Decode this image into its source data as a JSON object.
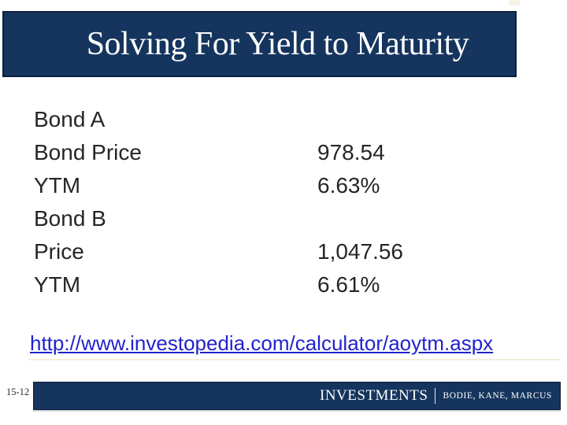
{
  "slide": {
    "title": "Solving For Yield to Maturity",
    "body": {
      "rows": [
        {
          "label": "Bond A",
          "value": ""
        },
        {
          "label": "Bond Price",
          "value": "978.54"
        },
        {
          "label": "YTM",
          "value": "6.63%"
        },
        {
          "label": "Bond B",
          "value": ""
        },
        {
          "label": "Price",
          "value": "1,047.56"
        },
        {
          "label": "YTM",
          "value": "6.61%"
        }
      ]
    },
    "link": {
      "text": "http://www.investopedia.com/calculator/aoytm.aspx"
    },
    "footer": {
      "page_number": "15-12",
      "brand": "INVESTMENTS",
      "authors": "BODIE, KANE, MARCUS"
    },
    "colors": {
      "navy": "#15355e",
      "navy_border": "#0c203b",
      "body_text": "#262626",
      "link_blue": "#2222cc",
      "accent_cream": "#f4edda",
      "title_text": "#ffffff"
    }
  }
}
